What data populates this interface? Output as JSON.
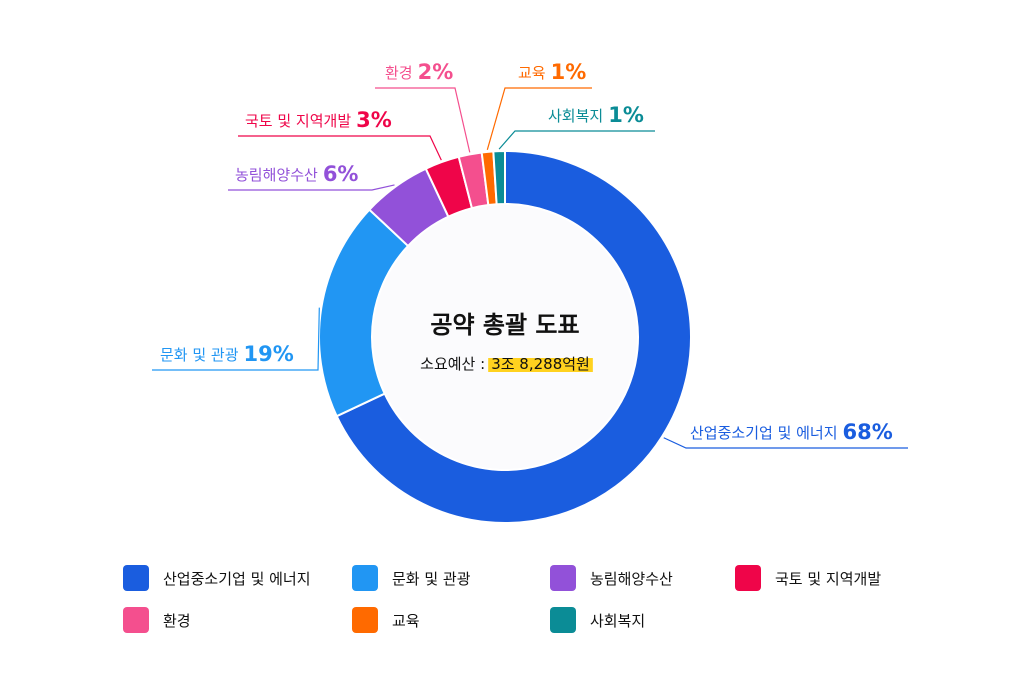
{
  "chart_data": {
    "type": "donut",
    "title": "공약 총괄 도표",
    "budget_label": "소요예산 :",
    "budget": "3조 8,288억원",
    "categories": [
      "산업중소기업 및 에너지",
      "문화 및 관광",
      "농림해양수산",
      "국토 및 지역개발",
      "환경",
      "교육",
      "사회복지"
    ],
    "values": [
      68,
      19,
      6,
      3,
      2,
      1,
      1
    ],
    "value_labels": [
      "68%",
      "19%",
      "6%",
      "3%",
      "2%",
      "1%",
      "1%"
    ],
    "colors": [
      "#1a5ddf",
      "#2196f3",
      "#9251d9",
      "#ef0549",
      "#f44f8e",
      "#ff6a00",
      "#0b8c96"
    ]
  }
}
